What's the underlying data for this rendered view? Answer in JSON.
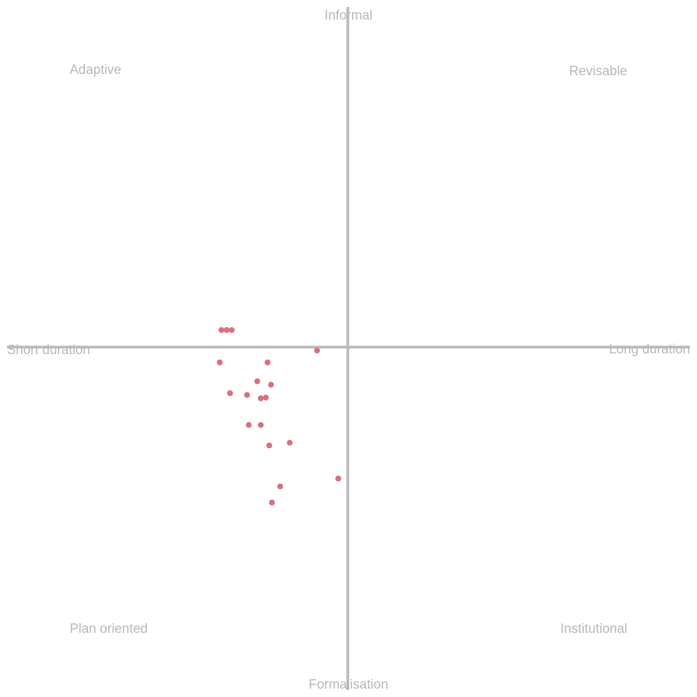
{
  "chart_data": {
    "type": "scatter",
    "xlim": [
      -1,
      1
    ],
    "ylim": [
      -1,
      1
    ],
    "grid": false,
    "axes": {
      "x_left_label": "Short duration",
      "x_right_label": "Long duration",
      "y_top_label": "Informal",
      "y_bottom_label": "Formalisation"
    },
    "quadrant_labels": {
      "top_left": "Adaptive",
      "top_right": "Revisable",
      "bottom_left": "Plan oriented",
      "bottom_right": "Institutional"
    },
    "point_color": "#d9707f",
    "axis_color": "#bdbdbd",
    "label_color": "#b8b8b8",
    "points": [
      {
        "x": -0.37,
        "y": 0.05
      },
      {
        "x": -0.355,
        "y": 0.05
      },
      {
        "x": -0.34,
        "y": 0.05
      },
      {
        "x": -0.09,
        "y": -0.01
      },
      {
        "x": -0.375,
        "y": -0.045
      },
      {
        "x": -0.235,
        "y": -0.045
      },
      {
        "x": -0.265,
        "y": -0.1
      },
      {
        "x": -0.225,
        "y": -0.11
      },
      {
        "x": -0.345,
        "y": -0.135
      },
      {
        "x": -0.295,
        "y": -0.14
      },
      {
        "x": -0.255,
        "y": -0.15
      },
      {
        "x": -0.24,
        "y": -0.148
      },
      {
        "x": -0.29,
        "y": -0.228
      },
      {
        "x": -0.255,
        "y": -0.228
      },
      {
        "x": -0.23,
        "y": -0.288
      },
      {
        "x": -0.17,
        "y": -0.28
      },
      {
        "x": -0.028,
        "y": -0.385
      },
      {
        "x": -0.198,
        "y": -0.408
      },
      {
        "x": -0.222,
        "y": -0.455
      }
    ]
  }
}
